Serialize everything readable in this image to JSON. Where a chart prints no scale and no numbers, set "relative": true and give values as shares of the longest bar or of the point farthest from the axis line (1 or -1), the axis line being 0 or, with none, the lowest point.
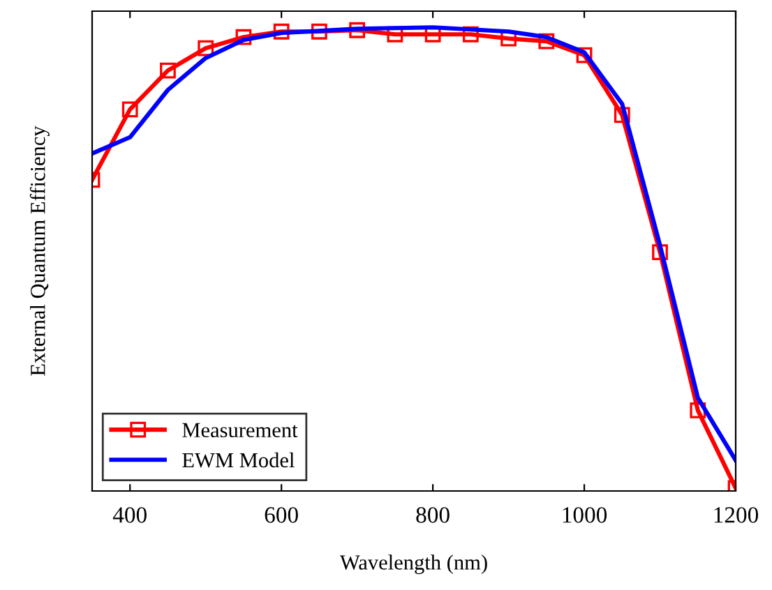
{
  "chart_data": {
    "type": "line",
    "xlabel": "Wavelength (nm)",
    "ylabel": "External Quantum Efficiency",
    "relative": true,
    "xlim": [
      350,
      1200
    ],
    "xticks": [
      400,
      600,
      800,
      1000,
      1200
    ],
    "legend": "bottom left",
    "grid": false,
    "series": [
      {
        "name": "Measurement",
        "color": "#ff0000",
        "marker": "square",
        "x": [
          350,
          400,
          450,
          500,
          550,
          600,
          650,
          700,
          750,
          800,
          850,
          900,
          950,
          1000,
          1050,
          1100,
          1150,
          1200
        ],
        "values": [
          0.671,
          0.823,
          0.907,
          0.955,
          0.979,
          0.991,
          0.991,
          0.994,
          0.985,
          0.985,
          0.985,
          0.976,
          0.97,
          0.94,
          0.811,
          0.515,
          0.174,
          0.006
        ]
      },
      {
        "name": "EWM Model",
        "color": "#0000ff",
        "marker": "none",
        "x": [
          350,
          400,
          450,
          500,
          550,
          600,
          700,
          800,
          900,
          950,
          1000,
          1050,
          1100,
          1150,
          1200
        ],
        "values": [
          0.728,
          0.763,
          0.865,
          0.934,
          0.973,
          0.988,
          0.997,
          1.0,
          0.991,
          0.979,
          0.946,
          0.835,
          0.53,
          0.201,
          0.066
        ]
      }
    ]
  }
}
